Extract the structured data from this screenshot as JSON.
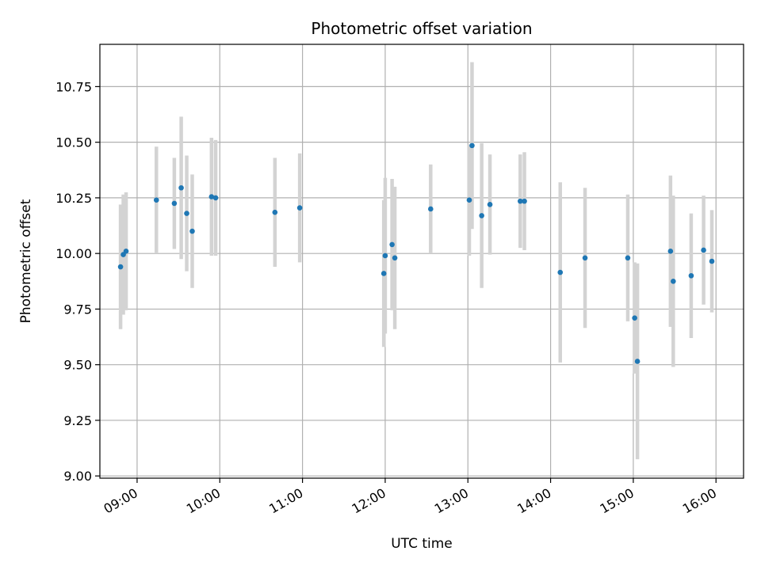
{
  "chart_data": {
    "type": "scatter",
    "title": "Photometric offset variation",
    "xlabel": "UTC time",
    "ylabel": "Photometric offset",
    "grid": true,
    "x_ticks": [
      "09:00",
      "10:00",
      "11:00",
      "12:00",
      "13:00",
      "14:00",
      "15:00",
      "16:00"
    ],
    "y_ticks": [
      "9.00",
      "9.25",
      "9.50",
      "9.75",
      "10.00",
      "10.25",
      "10.50",
      "10.75"
    ],
    "xlim": [
      "08:33",
      "16:20"
    ],
    "ylim": [
      8.99,
      10.94
    ],
    "colors": {
      "point": "#1f77b4",
      "errorbar": "#d3d3d3",
      "grid": "#b0b0b0"
    },
    "series": [
      {
        "points": [
          {
            "x": "08:48",
            "y": 9.94,
            "err": 0.28
          },
          {
            "x": "08:50",
            "y": 9.995,
            "err": 0.27
          },
          {
            "x": "08:52",
            "y": 10.01,
            "err": 0.265
          },
          {
            "x": "09:14",
            "y": 10.24,
            "err": 0.24
          },
          {
            "x": "09:27",
            "y": 10.225,
            "err": 0.205
          },
          {
            "x": "09:32",
            "y": 10.295,
            "err": 0.32
          },
          {
            "x": "09:36",
            "y": 10.18,
            "err": 0.26
          },
          {
            "x": "09:40",
            "y": 10.1,
            "err": 0.255
          },
          {
            "x": "09:54",
            "y": 10.255,
            "err": 0.265
          },
          {
            "x": "09:57",
            "y": 10.25,
            "err": 0.26
          },
          {
            "x": "10:40",
            "y": 10.185,
            "err": 0.245
          },
          {
            "x": "10:58",
            "y": 10.205,
            "err": 0.245
          },
          {
            "x": "11:59",
            "y": 9.91,
            "err": 0.33
          },
          {
            "x": "12:00",
            "y": 9.99,
            "err": 0.35
          },
          {
            "x": "12:05",
            "y": 10.04,
            "err": 0.295
          },
          {
            "x": "12:07",
            "y": 9.98,
            "err": 0.32
          },
          {
            "x": "12:33",
            "y": 10.2,
            "err": 0.2
          },
          {
            "x": "13:01",
            "y": 10.24,
            "err": 0.25
          },
          {
            "x": "13:03",
            "y": 10.485,
            "err": 0.375
          },
          {
            "x": "13:10",
            "y": 10.17,
            "err": 0.325
          },
          {
            "x": "13:16",
            "y": 10.22,
            "err": 0.225
          },
          {
            "x": "13:38",
            "y": 10.235,
            "err": 0.21
          },
          {
            "x": "13:41",
            "y": 10.235,
            "err": 0.22
          },
          {
            "x": "14:07",
            "y": 9.915,
            "err": 0.405
          },
          {
            "x": "14:25",
            "y": 9.98,
            "err": 0.315
          },
          {
            "x": "14:56",
            "y": 9.98,
            "err": 0.285
          },
          {
            "x": "15:01",
            "y": 9.71,
            "err": 0.25
          },
          {
            "x": "15:03",
            "y": 9.515,
            "err": 0.44
          },
          {
            "x": "15:27",
            "y": 10.01,
            "err": 0.34
          },
          {
            "x": "15:29",
            "y": 9.875,
            "err": 0.385
          },
          {
            "x": "15:42",
            "y": 9.9,
            "err": 0.28
          },
          {
            "x": "15:51",
            "y": 10.015,
            "err": 0.245
          },
          {
            "x": "15:57",
            "y": 9.965,
            "err": 0.23
          }
        ]
      }
    ]
  }
}
